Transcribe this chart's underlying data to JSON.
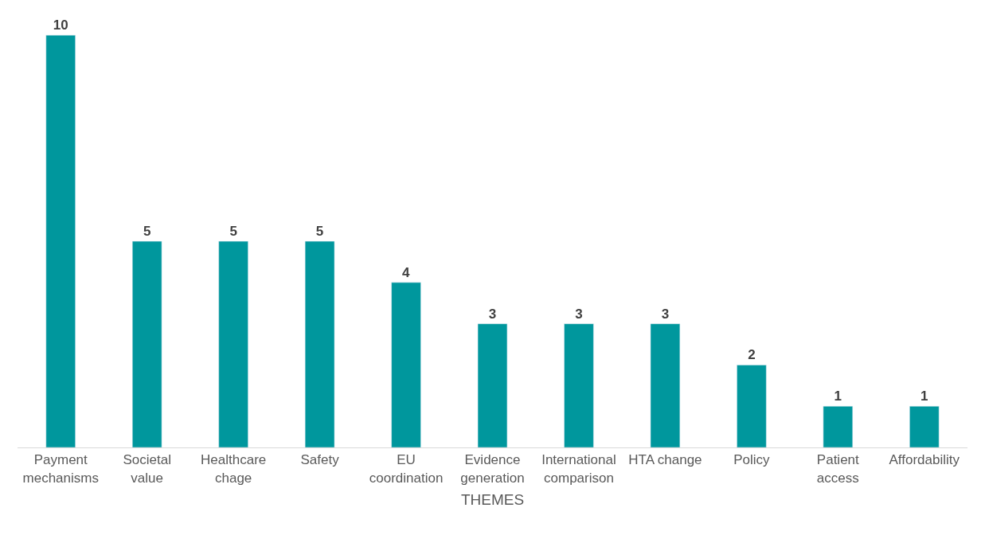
{
  "chart_data": {
    "type": "bar",
    "xlabel": "THEMES",
    "categories": [
      "Payment mechanisms",
      "Societal value",
      "Healthcare chage",
      "Safety",
      "EU coordination",
      "Evidence generation",
      "International comparison",
      "HTA change",
      "Policy",
      "Patient access",
      "Affordability"
    ],
    "values": [
      10,
      5,
      5,
      5,
      4,
      3,
      3,
      3,
      2,
      1,
      1
    ],
    "color": "#00979d",
    "data_labels": true
  }
}
